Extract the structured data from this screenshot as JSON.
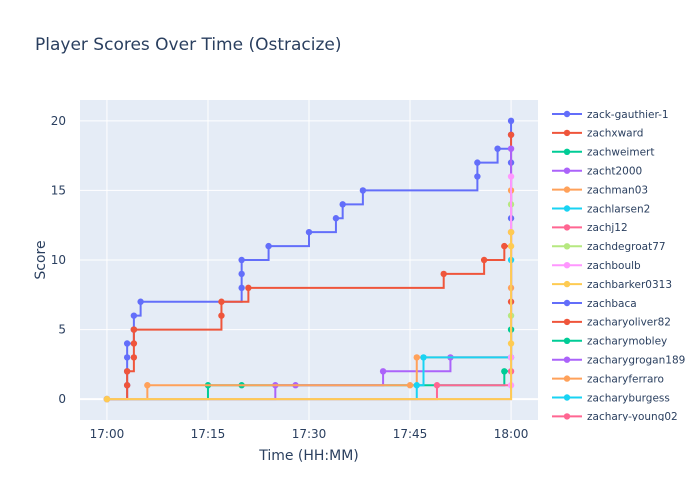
{
  "chart_data": {
    "type": "line",
    "line_shape": "step",
    "title": "Player Scores Over Time (Ostracize)",
    "xlabel": "Time (HH:MM)",
    "ylabel": "Score",
    "x_ticks": [
      "17:00",
      "17:15",
      "17:30",
      "17:45",
      "18:00"
    ],
    "y_ticks": [
      0,
      5,
      10,
      15,
      20
    ],
    "xlim_minutes_after_1700": [
      -4,
      64
    ],
    "ylim": [
      -1.5,
      21.5
    ],
    "grid": true,
    "legend_position": "right",
    "colors": {
      "plot_bg": "#e5ecf6",
      "grid": "#ffffff",
      "text": "#2a3f5f"
    },
    "series": [
      {
        "name": "zack-gauthier-1",
        "color": "#636efa",
        "x": [
          "17:00",
          "17:03",
          "17:03",
          "17:03",
          "17:03",
          "17:04",
          "17:04",
          "17:05",
          "17:20",
          "17:20",
          "17:20",
          "17:24",
          "17:30",
          "17:34",
          "17:35",
          "17:38",
          "17:55",
          "17:55",
          "17:58",
          "18:00",
          "18:00",
          "18:00",
          "18:00"
        ],
        "y": [
          0,
          1,
          2,
          3,
          4,
          5,
          6,
          7,
          8,
          9,
          10,
          11,
          12,
          13,
          14,
          15,
          16,
          17,
          18,
          13,
          17,
          19,
          20
        ]
      },
      {
        "name": "zachxward",
        "color": "#ef553b",
        "x": [
          "17:00",
          "17:03",
          "17:03",
          "17:04",
          "17:04",
          "17:04",
          "17:17",
          "17:17",
          "17:21",
          "17:50",
          "17:56",
          "17:59",
          "18:00",
          "18:00"
        ],
        "y": [
          0,
          1,
          2,
          3,
          4,
          5,
          6,
          7,
          8,
          9,
          10,
          11,
          7,
          19
        ]
      },
      {
        "name": "zachweimert",
        "color": "#00cc96",
        "x": [
          "17:00",
          "17:15",
          "17:20",
          "17:59",
          "18:00"
        ],
        "y": [
          0,
          1,
          1,
          2,
          5
        ]
      },
      {
        "name": "zacht2000",
        "color": "#ab63fa",
        "x": [
          "17:00",
          "17:25",
          "17:28",
          "17:41",
          "17:51",
          "18:00"
        ],
        "y": [
          0,
          1,
          1,
          2,
          3,
          18
        ]
      },
      {
        "name": "zachman03",
        "color": "#ffa15a",
        "x": [
          "17:00",
          "17:06",
          "17:45",
          "17:46",
          "18:00",
          "18:00"
        ],
        "y": [
          0,
          1,
          1,
          3,
          8,
          15
        ]
      },
      {
        "name": "zachlarsen2",
        "color": "#19d3f3",
        "x": [
          "17:00",
          "17:46",
          "17:47",
          "18:00",
          "18:00"
        ],
        "y": [
          0,
          1,
          3,
          3,
          10
        ]
      },
      {
        "name": "zachj12",
        "color": "#ff6692",
        "x": [
          "17:00",
          "17:49",
          "18:00",
          "18:00"
        ],
        "y": [
          0,
          1,
          2,
          12
        ]
      },
      {
        "name": "zachdegroat77",
        "color": "#b6e880",
        "x": [
          "17:00",
          "18:00",
          "18:00"
        ],
        "y": [
          0,
          6,
          14
        ]
      },
      {
        "name": "zachboulb",
        "color": "#ff97ff",
        "x": [
          "17:00",
          "18:00",
          "18:00",
          "18:00"
        ],
        "y": [
          0,
          1,
          3,
          16
        ]
      },
      {
        "name": "zachbarker0313",
        "color": "#fecb52",
        "x": [
          "17:00",
          "18:00",
          "18:00",
          "18:00"
        ],
        "y": [
          0,
          4,
          11,
          12
        ]
      },
      {
        "name": "zachbaca",
        "color": "#636efa",
        "x": [],
        "y": []
      },
      {
        "name": "zacharyoliver82",
        "color": "#ef553b",
        "x": [],
        "y": []
      },
      {
        "name": "zacharymobley",
        "color": "#00cc96",
        "x": [],
        "y": []
      },
      {
        "name": "zacharygrogan189",
        "color": "#ab63fa",
        "x": [],
        "y": []
      },
      {
        "name": "zacharyferraro",
        "color": "#ffa15a",
        "x": [],
        "y": []
      },
      {
        "name": "zacharyburgess",
        "color": "#19d3f3",
        "x": [],
        "y": []
      },
      {
        "name": "zachary-young02",
        "color": "#ff6692",
        "x": [],
        "y": []
      }
    ]
  }
}
